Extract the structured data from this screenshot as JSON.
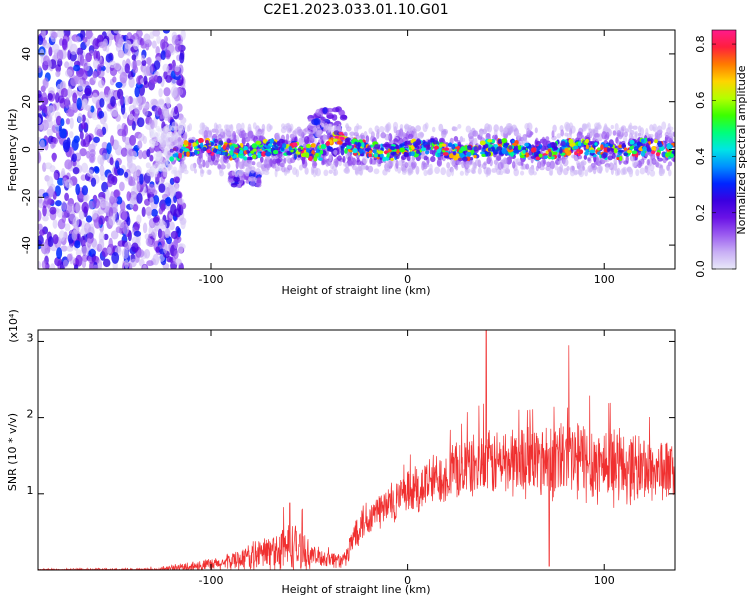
{
  "figure": {
    "title": "C2E1.2023.033.01.10.G01",
    "background": "#ffffff"
  },
  "chart_data": [
    {
      "type": "heatmap",
      "xlabel": "Height of straight line (km)",
      "ylabel": "Frequency (Hz)",
      "xlim": [
        -188,
        136
      ],
      "ylim": [
        -50,
        50
      ],
      "x_ticks": [
        -100,
        0,
        100
      ],
      "x_tick_labels": [
        "-100",
        "0",
        "100"
      ],
      "y_ticks": [
        -40,
        -20,
        0,
        20,
        40
      ],
      "y_tick_labels": [
        "-40",
        "-20",
        "0",
        "20",
        "40"
      ],
      "colorbar": {
        "label": "Normalized spectral amplitude",
        "range": [
          0,
          0.85
        ],
        "ticks": [
          0.0,
          0.2,
          0.4,
          0.6,
          0.8
        ],
        "tick_labels": [
          "0.0",
          "0.2",
          "0.4",
          "0.6",
          "0.8"
        ],
        "colormap": [
          "#e9e9f9",
          "#c8aef5",
          "#9b5cf0",
          "#6a12e6",
          "#3b00e0",
          "#0025ff",
          "#0090ff",
          "#00e5e5",
          "#00ff7a",
          "#3cff00",
          "#b4ff00",
          "#ffd400",
          "#ff7a00",
          "#ff1f3d",
          "#ff1a8c"
        ]
      },
      "regions": {
        "noise_band": {
          "x": [
            -188,
            -114
          ],
          "freq": [
            -50,
            50
          ],
          "amplitude": [
            0.03,
            0.32
          ]
        },
        "signal_band": {
          "x": [
            -130,
            136
          ],
          "center_freq": 0,
          "half_width": 10,
          "peak_amplitude": 0.85
        },
        "spur": {
          "x": [
            -50,
            -32
          ],
          "freq": [
            5,
            17
          ],
          "amplitude": [
            0.05,
            0.3
          ]
        },
        "dip": {
          "x": [
            -90,
            -75
          ],
          "freq": [
            -15,
            -10
          ],
          "amplitude": [
            0.05,
            0.3
          ]
        }
      },
      "grid": false
    },
    {
      "type": "line",
      "xlabel": "Height of straight line (km)",
      "ylabel": "SNR (10 * v/v)",
      "y_scale_label": "(x10⁴)",
      "xlim": [
        -188,
        136
      ],
      "ylim": [
        0,
        3.15
      ],
      "x_ticks": [
        -100,
        0,
        100
      ],
      "x_tick_labels": [
        "-100",
        "0",
        "100"
      ],
      "y_ticks": [
        1,
        2,
        3
      ],
      "y_tick_labels": [
        "1",
        "2",
        "3"
      ],
      "series": [
        {
          "color": "#f03030",
          "envelope": [
            {
              "x": -188,
              "base": 0.0,
              "amp": 0.02
            },
            {
              "x": -125,
              "base": 0.0,
              "amp": 0.03
            },
            {
              "x": -112,
              "base": 0.04,
              "amp": 0.08
            },
            {
              "x": -95,
              "base": 0.08,
              "amp": 0.1
            },
            {
              "x": -80,
              "base": 0.18,
              "amp": 0.2
            },
            {
              "x": -68,
              "base": 0.25,
              "amp": 0.3
            },
            {
              "x": -58,
              "base": 0.3,
              "amp": 0.4
            },
            {
              "x": -48,
              "base": 0.18,
              "amp": 0.15
            },
            {
              "x": -32,
              "base": 0.12,
              "amp": 0.12
            },
            {
              "x": -25,
              "base": 0.6,
              "amp": 0.3
            },
            {
              "x": -10,
              "base": 0.85,
              "amp": 0.3
            },
            {
              "x": 5,
              "base": 1.05,
              "amp": 0.4
            },
            {
              "x": 15,
              "base": 1.2,
              "amp": 0.4
            },
            {
              "x": 30,
              "base": 1.35,
              "amp": 0.45
            },
            {
              "x": 60,
              "base": 1.45,
              "amp": 0.55
            },
            {
              "x": 85,
              "base": 1.45,
              "amp": 0.65
            },
            {
              "x": 110,
              "base": 1.35,
              "amp": 0.55
            },
            {
              "x": 136,
              "base": 1.3,
              "amp": 0.45
            }
          ],
          "peaks": [
            {
              "x": 40,
              "y": 3.15
            },
            {
              "x": 82,
              "y": 2.95
            },
            {
              "x": 72,
              "y": 0.05
            },
            {
              "x": -60,
              "y": 0.88
            },
            {
              "x": -30,
              "y": 0.12
            }
          ]
        }
      ],
      "grid": false
    }
  ]
}
